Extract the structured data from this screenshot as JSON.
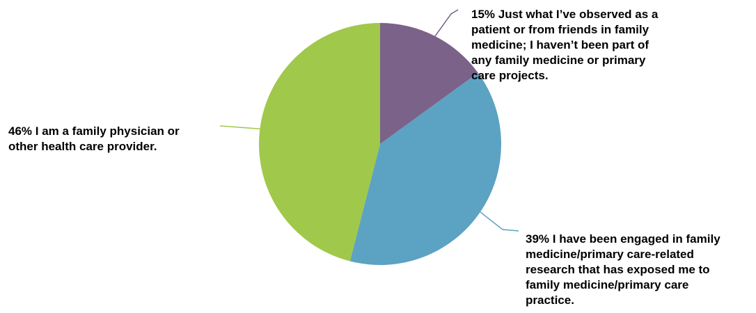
{
  "chart_data": {
    "type": "pie",
    "slices": [
      {
        "label": "Just what I’ve observed as a patient or from friends in family medicine; I haven’t been part of any family medicine or primary care projects.",
        "value": 15,
        "color": "#7b6289",
        "text_lines": [
          "15% Just what I’ve observed as a",
          "patient or from friends in family",
          "medicine; I haven’t been part of",
          "any family medicine or primary",
          "care projects."
        ]
      },
      {
        "label": "I have been engaged in family medicine/primary care-related research that has exposed me to family medicine/primary care practice.",
        "value": 39,
        "color": "#5ca2c3",
        "text_lines": [
          "39% I have been engaged in family",
          "medicine/primary care-related",
          "research that has exposed me to",
          "family medicine/primary care",
          "practice."
        ]
      },
      {
        "label": "I am a family physician or other health care provider.",
        "value": 46,
        "color": "#a0c84b",
        "text_lines": [
          "46% I am a family physician or",
          "other health care provider."
        ]
      }
    ],
    "start_angle": "12 o'clock",
    "direction": "clockwise"
  }
}
